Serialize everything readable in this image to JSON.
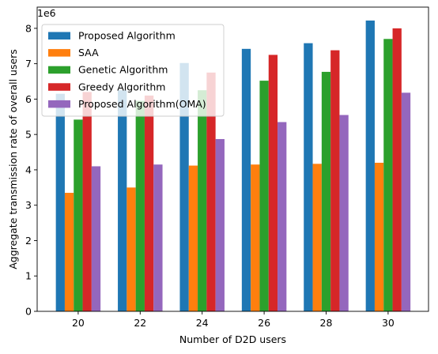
{
  "chart_data": {
    "type": "bar",
    "title": "",
    "xlabel": "Number of D2D users",
    "ylabel": "Aggregate transmission rate of overall users",
    "y_scale_label": "1e6",
    "categories": [
      "20",
      "22",
      "24",
      "26",
      "28",
      "30"
    ],
    "yticks": [
      "0",
      "1",
      "2",
      "3",
      "4",
      "5",
      "6",
      "7",
      "8"
    ],
    "ylim": [
      0,
      8.6
    ],
    "legend_position": "upper-left",
    "series": [
      {
        "name": "Proposed Algorithm",
        "color": "#1f77b4",
        "values": [
          6.15,
          6.25,
          7.02,
          7.42,
          7.58,
          8.22
        ]
      },
      {
        "name": "SAA",
        "color": "#ff7f0e",
        "values": [
          3.35,
          3.5,
          4.12,
          4.15,
          4.17,
          4.2
        ]
      },
      {
        "name": "Genetic Algorithm",
        "color": "#2ca02c",
        "values": [
          5.42,
          5.95,
          6.25,
          6.52,
          6.77,
          7.7
        ]
      },
      {
        "name": "Greedy Algorithm",
        "color": "#d62728",
        "values": [
          6.2,
          6.1,
          6.75,
          7.25,
          7.38,
          8.0
        ]
      },
      {
        "name": "Proposed Algorithm(OMA)",
        "color": "#9467bd",
        "values": [
          4.1,
          4.15,
          4.87,
          5.35,
          5.55,
          6.18
        ]
      }
    ]
  }
}
